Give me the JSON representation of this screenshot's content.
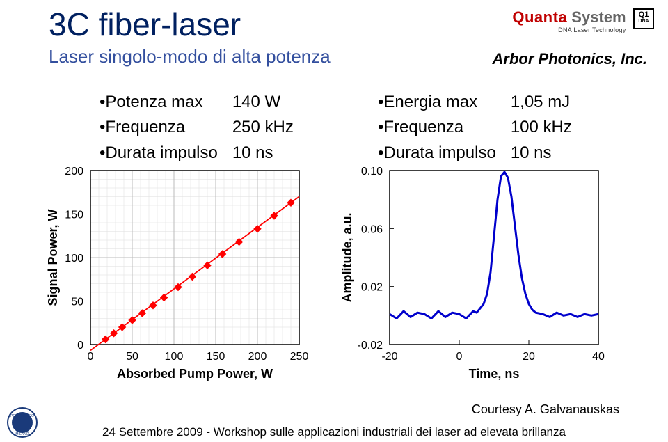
{
  "header": {
    "title": "3C fiber-laser",
    "subtitle": "Laser singolo-modo di alta potenza",
    "company": "Arbor Photonics, Inc.",
    "brand_quanta": "Quanta",
    "brand_system": " System",
    "brand_tagline": "DNA Laser Technology",
    "brand_q1": "Q1",
    "brand_dna": "DNA"
  },
  "bullets_left": [
    {
      "label": "Potenza max",
      "value": "140 W"
    },
    {
      "label": "Frequenza",
      "value": "250 kHz"
    },
    {
      "label": "Durata impulso",
      "value": "10 ns"
    }
  ],
  "bullets_right": [
    {
      "label": "Energia  max",
      "value": "1,05 mJ"
    },
    {
      "label": "Frequenza",
      "value": "100  kHz"
    },
    {
      "label": "Durata impulso",
      "value": "10 ns"
    }
  ],
  "left_chart": {
    "type": "scatter-line",
    "xlabel": "Absorbed Pump Power, W",
    "ylabel": "Signal Power, W",
    "xlim": [
      0,
      250
    ],
    "xtick_step": 50,
    "ylim": [
      0,
      200
    ],
    "ytick_step": 50,
    "bg": "#ffffff",
    "subgrid_color": "#dddddd",
    "grid_color": "#bbbbbb",
    "border_color": "#000000",
    "line_color": "#ff0000",
    "line_width": 1.8,
    "marker_color": "#ff0000",
    "marker_type": "diamond",
    "marker_size": 5,
    "label_fontsize": 18,
    "tick_fontsize": 16,
    "points": [
      [
        18,
        6
      ],
      [
        28,
        13
      ],
      [
        38,
        20
      ],
      [
        50,
        28
      ],
      [
        62,
        36
      ],
      [
        75,
        45
      ],
      [
        88,
        54
      ],
      [
        105,
        66
      ],
      [
        122,
        78
      ],
      [
        140,
        91
      ],
      [
        158,
        104
      ],
      [
        178,
        118
      ],
      [
        200,
        133
      ],
      [
        220,
        148
      ],
      [
        240,
        163
      ]
    ]
  },
  "right_chart": {
    "type": "line",
    "xlabel": "Time, ns",
    "ylabel": "Amplitude, a.u.",
    "xlim": [
      -20,
      40
    ],
    "xtick_step": 20,
    "ylim": [
      -0.02,
      0.1
    ],
    "ytick_step": 0.04,
    "bg": "#ffffff",
    "border_color": "#000000",
    "line_color": "#0000cc",
    "line_width": 3,
    "label_fontsize": 18,
    "tick_fontsize": 16,
    "points": [
      [
        -20,
        0.001
      ],
      [
        -18,
        -0.002
      ],
      [
        -16,
        0.003
      ],
      [
        -14,
        -0.001
      ],
      [
        -12,
        0.002
      ],
      [
        -10,
        0.001
      ],
      [
        -8,
        -0.002
      ],
      [
        -6,
        0.003
      ],
      [
        -4,
        -0.001
      ],
      [
        -2,
        0.002
      ],
      [
        0,
        0.001
      ],
      [
        2,
        -0.002
      ],
      [
        4,
        0.003
      ],
      [
        5,
        0.002
      ],
      [
        6,
        0.005
      ],
      [
        7,
        0.008
      ],
      [
        8,
        0.015
      ],
      [
        9,
        0.03
      ],
      [
        10,
        0.055
      ],
      [
        11,
        0.08
      ],
      [
        12,
        0.096
      ],
      [
        13,
        0.099
      ],
      [
        14,
        0.095
      ],
      [
        15,
        0.082
      ],
      [
        16,
        0.062
      ],
      [
        17,
        0.042
      ],
      [
        18,
        0.026
      ],
      [
        19,
        0.015
      ],
      [
        20,
        0.008
      ],
      [
        21,
        0.004
      ],
      [
        22,
        0.002
      ],
      [
        24,
        0.001
      ],
      [
        26,
        -0.001
      ],
      [
        28,
        0.002
      ],
      [
        30,
        0.0
      ],
      [
        32,
        0.001
      ],
      [
        34,
        -0.001
      ],
      [
        36,
        0.001
      ],
      [
        38,
        0.0
      ],
      [
        40,
        0.001
      ]
    ]
  },
  "courtesy": "Courtesy A. Galvanauskas",
  "footer": "24 Settembre 2009 - Workshop sulle applicazioni industriali dei laser ad elevata brillanza"
}
